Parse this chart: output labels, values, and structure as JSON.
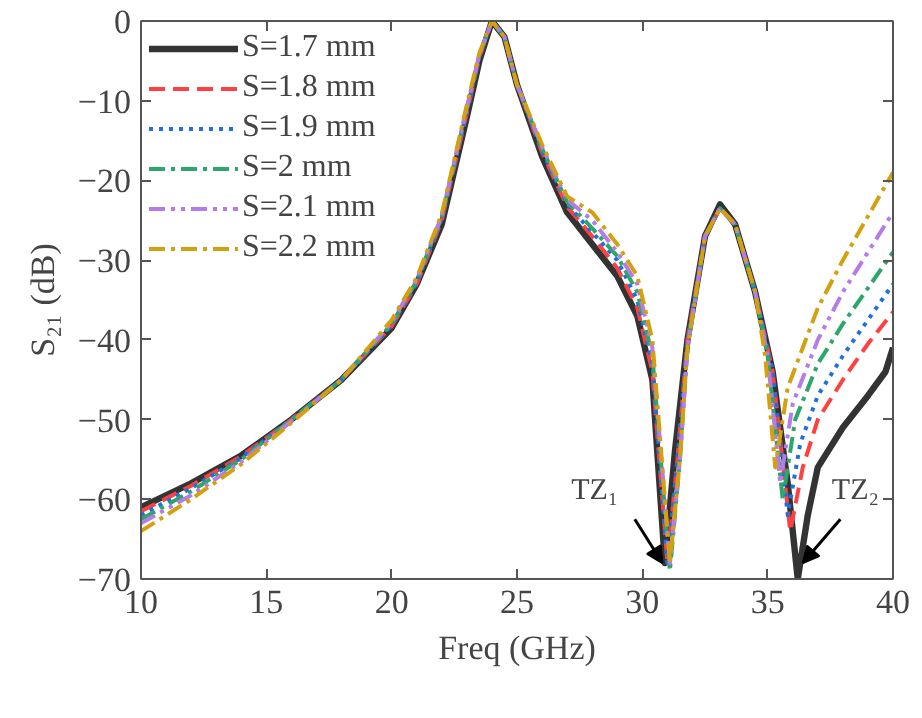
{
  "chart_data": {
    "type": "line",
    "xlabel": "Freq (GHz)",
    "ylabel": "S₂₁ (dB)",
    "xlim": [
      10,
      40
    ],
    "ylim": [
      -70,
      0
    ],
    "xticks": [
      10,
      15,
      20,
      25,
      30,
      35,
      40
    ],
    "yticks": [
      -70,
      -60,
      -50,
      -40,
      -30,
      -20,
      -10,
      0
    ],
    "grid": false,
    "legend": "top left",
    "marker": "none",
    "series": [
      {
        "name": "S=1.7 mm",
        "color": "#333333",
        "line_style": "solid",
        "x": [
          10,
          12,
          14,
          16,
          18,
          20,
          21,
          22,
          23,
          23.5,
          24,
          24.5,
          25,
          26,
          27,
          28,
          29,
          29.8,
          30.4,
          30.9,
          31.3,
          31.8,
          32.5,
          33.1,
          33.7,
          34.5,
          35.2,
          35.8,
          36.2,
          36.6,
          37,
          38,
          39,
          39.7,
          40
        ],
        "values": [
          -61,
          -58,
          -54.5,
          -50,
          -45,
          -38.5,
          -33,
          -25.5,
          -12,
          -5,
          0,
          -2,
          -8,
          -17,
          -24,
          -28,
          -32,
          -37,
          -45,
          -68,
          -54,
          -40,
          -27,
          -23,
          -25.5,
          -34,
          -44,
          -58,
          -70,
          -62,
          -56,
          -51,
          -47,
          -44,
          -41
        ]
      },
      {
        "name": "S=1.8 mm",
        "color": "#ff4040",
        "line_style": "dashed",
        "x": [
          10,
          12,
          14,
          16,
          18,
          20,
          21,
          22,
          23,
          23.5,
          24,
          24.5,
          25,
          26,
          27,
          28,
          29,
          29.8,
          30.4,
          31.0,
          31.4,
          31.8,
          32.5,
          33.1,
          33.7,
          34.5,
          35.2,
          35.9,
          36.4,
          37,
          38,
          39,
          40
        ],
        "values": [
          -61.5,
          -58.3,
          -54.6,
          -50,
          -45,
          -38.3,
          -33,
          -25,
          -11.5,
          -4.5,
          0,
          -2,
          -8,
          -16.5,
          -23.3,
          -27,
          -31,
          -36,
          -44,
          -68,
          -55,
          -40,
          -27,
          -23.5,
          -25.5,
          -34,
          -44,
          -64,
          -56,
          -50,
          -45,
          -40.5,
          -36.5
        ]
      },
      {
        "name": "S=1.9 mm",
        "color": "#1f6fe0",
        "line_style": "dotted",
        "x": [
          10,
          12,
          14,
          16,
          18,
          20,
          21,
          22,
          23,
          23.5,
          24,
          24.5,
          25,
          26,
          27,
          28,
          29,
          29.8,
          30.4,
          31.0,
          31.4,
          31.8,
          32.5,
          33.1,
          33.7,
          34.5,
          35.2,
          35.8,
          36.3,
          37,
          38,
          39,
          40
        ],
        "values": [
          -62,
          -58.6,
          -54.8,
          -50,
          -45,
          -38.2,
          -32.8,
          -24.8,
          -11.3,
          -4.4,
          0,
          -2,
          -8,
          -16.3,
          -23,
          -26.5,
          -30,
          -35,
          -43,
          -68,
          -55,
          -40,
          -27,
          -23.5,
          -25.5,
          -34,
          -44,
          -62,
          -53,
          -47,
          -42,
          -37.5,
          -33
        ]
      },
      {
        "name": "S=2 mm",
        "color": "#2ca66a",
        "line_style": "dashdot",
        "x": [
          10,
          12,
          14,
          16,
          18,
          20,
          21,
          22,
          23,
          23.5,
          24,
          24.5,
          25,
          26,
          27,
          28,
          29,
          29.8,
          30.4,
          31.1,
          31.5,
          31.8,
          32.5,
          33.1,
          33.7,
          34.5,
          35.0,
          35.6,
          36.1,
          37,
          38,
          39,
          40
        ],
        "values": [
          -62.5,
          -59,
          -55,
          -50,
          -45,
          -38,
          -32.6,
          -24.6,
          -11,
          -4.3,
          0,
          -2,
          -8,
          -16,
          -22.7,
          -26,
          -29.5,
          -34,
          -42,
          -69,
          -55,
          -41,
          -27,
          -23.5,
          -25.5,
          -34,
          -42,
          -60,
          -50,
          -43,
          -38,
          -33.5,
          -29
        ]
      },
      {
        "name": "S=2.1 mm",
        "color": "#b57be6",
        "line_style": "dashdotdot",
        "x": [
          10,
          12,
          14,
          16,
          18,
          20,
          21,
          22,
          23,
          23.5,
          24,
          24.5,
          25,
          26,
          27,
          28,
          29,
          29.8,
          30.4,
          31.1,
          31.5,
          31.8,
          32.5,
          33.1,
          33.7,
          34.5,
          35.0,
          35.5,
          36.0,
          37,
          38,
          39,
          40
        ],
        "values": [
          -63,
          -59.5,
          -55.3,
          -50.2,
          -45,
          -37.8,
          -32.4,
          -24.4,
          -10.8,
          -4.2,
          0,
          -2,
          -8,
          -15.8,
          -22.4,
          -25,
          -29,
          -33,
          -41,
          -68,
          -55,
          -41,
          -27,
          -23.5,
          -25.5,
          -34,
          -42,
          -58,
          -48,
          -40,
          -34,
          -29,
          -24
        ]
      },
      {
        "name": "S=2.2 mm",
        "color": "#d4a010",
        "line_style": "dashdot",
        "x": [
          10,
          12,
          14,
          16,
          18,
          20,
          21,
          22,
          23,
          23.5,
          24,
          24.5,
          25,
          26,
          27,
          28,
          29,
          29.8,
          30.4,
          31.1,
          31.5,
          31.8,
          32.5,
          33.1,
          33.7,
          34.5,
          34.9,
          35.3,
          35.8,
          37,
          38,
          39,
          40
        ],
        "values": [
          -64,
          -60,
          -55.6,
          -50.4,
          -45,
          -37.5,
          -32.2,
          -24.2,
          -10.5,
          -4,
          0,
          -2,
          -8,
          -15.5,
          -22,
          -24,
          -28,
          -32,
          -40,
          -68,
          -55,
          -41,
          -27,
          -23.5,
          -25.5,
          -34,
          -42,
          -56,
          -46,
          -36,
          -30,
          -24.5,
          -19
        ]
      }
    ],
    "annotations": [
      {
        "text": "TZ₁",
        "x": 30.9,
        "y": -68
      },
      {
        "text": "TZ₂",
        "x": 36.2,
        "y": -68
      }
    ]
  }
}
